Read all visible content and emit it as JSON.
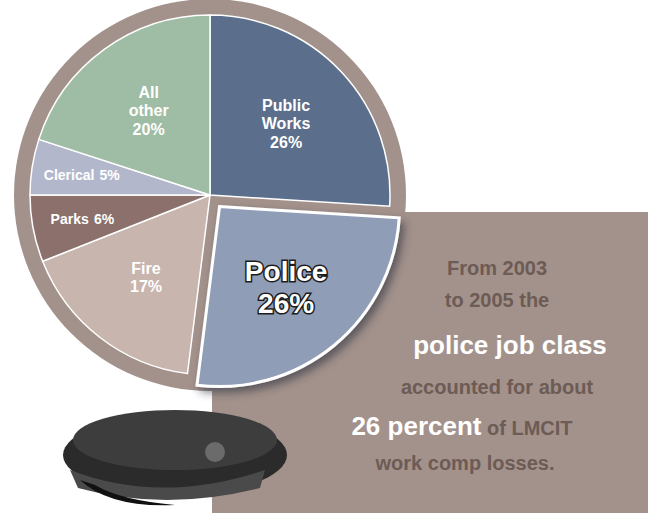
{
  "chart_data": {
    "type": "pie",
    "categories": [
      "Public Works",
      "Police",
      "Fire",
      "Parks",
      "Clerical",
      "All other"
    ],
    "values": [
      26,
      26,
      17,
      6,
      5,
      20
    ],
    "value_labels": [
      "26%",
      "26%",
      "17%",
      "6%",
      "5%",
      "20%"
    ],
    "colors": [
      "#5b6f8c",
      "#909db6",
      "#c8b5ae",
      "#8b706b",
      "#b3b7cc",
      "#9fbca4"
    ],
    "data_labels": true,
    "annotation": [
      [
        "From 2003"
      ],
      [
        "to 2005 the"
      ],
      [
        "police job class"
      ],
      [
        "accounted for about"
      ],
      [
        "26 percent",
        " of LMCIT"
      ],
      [
        "work comp losses."
      ]
    ]
  }
}
